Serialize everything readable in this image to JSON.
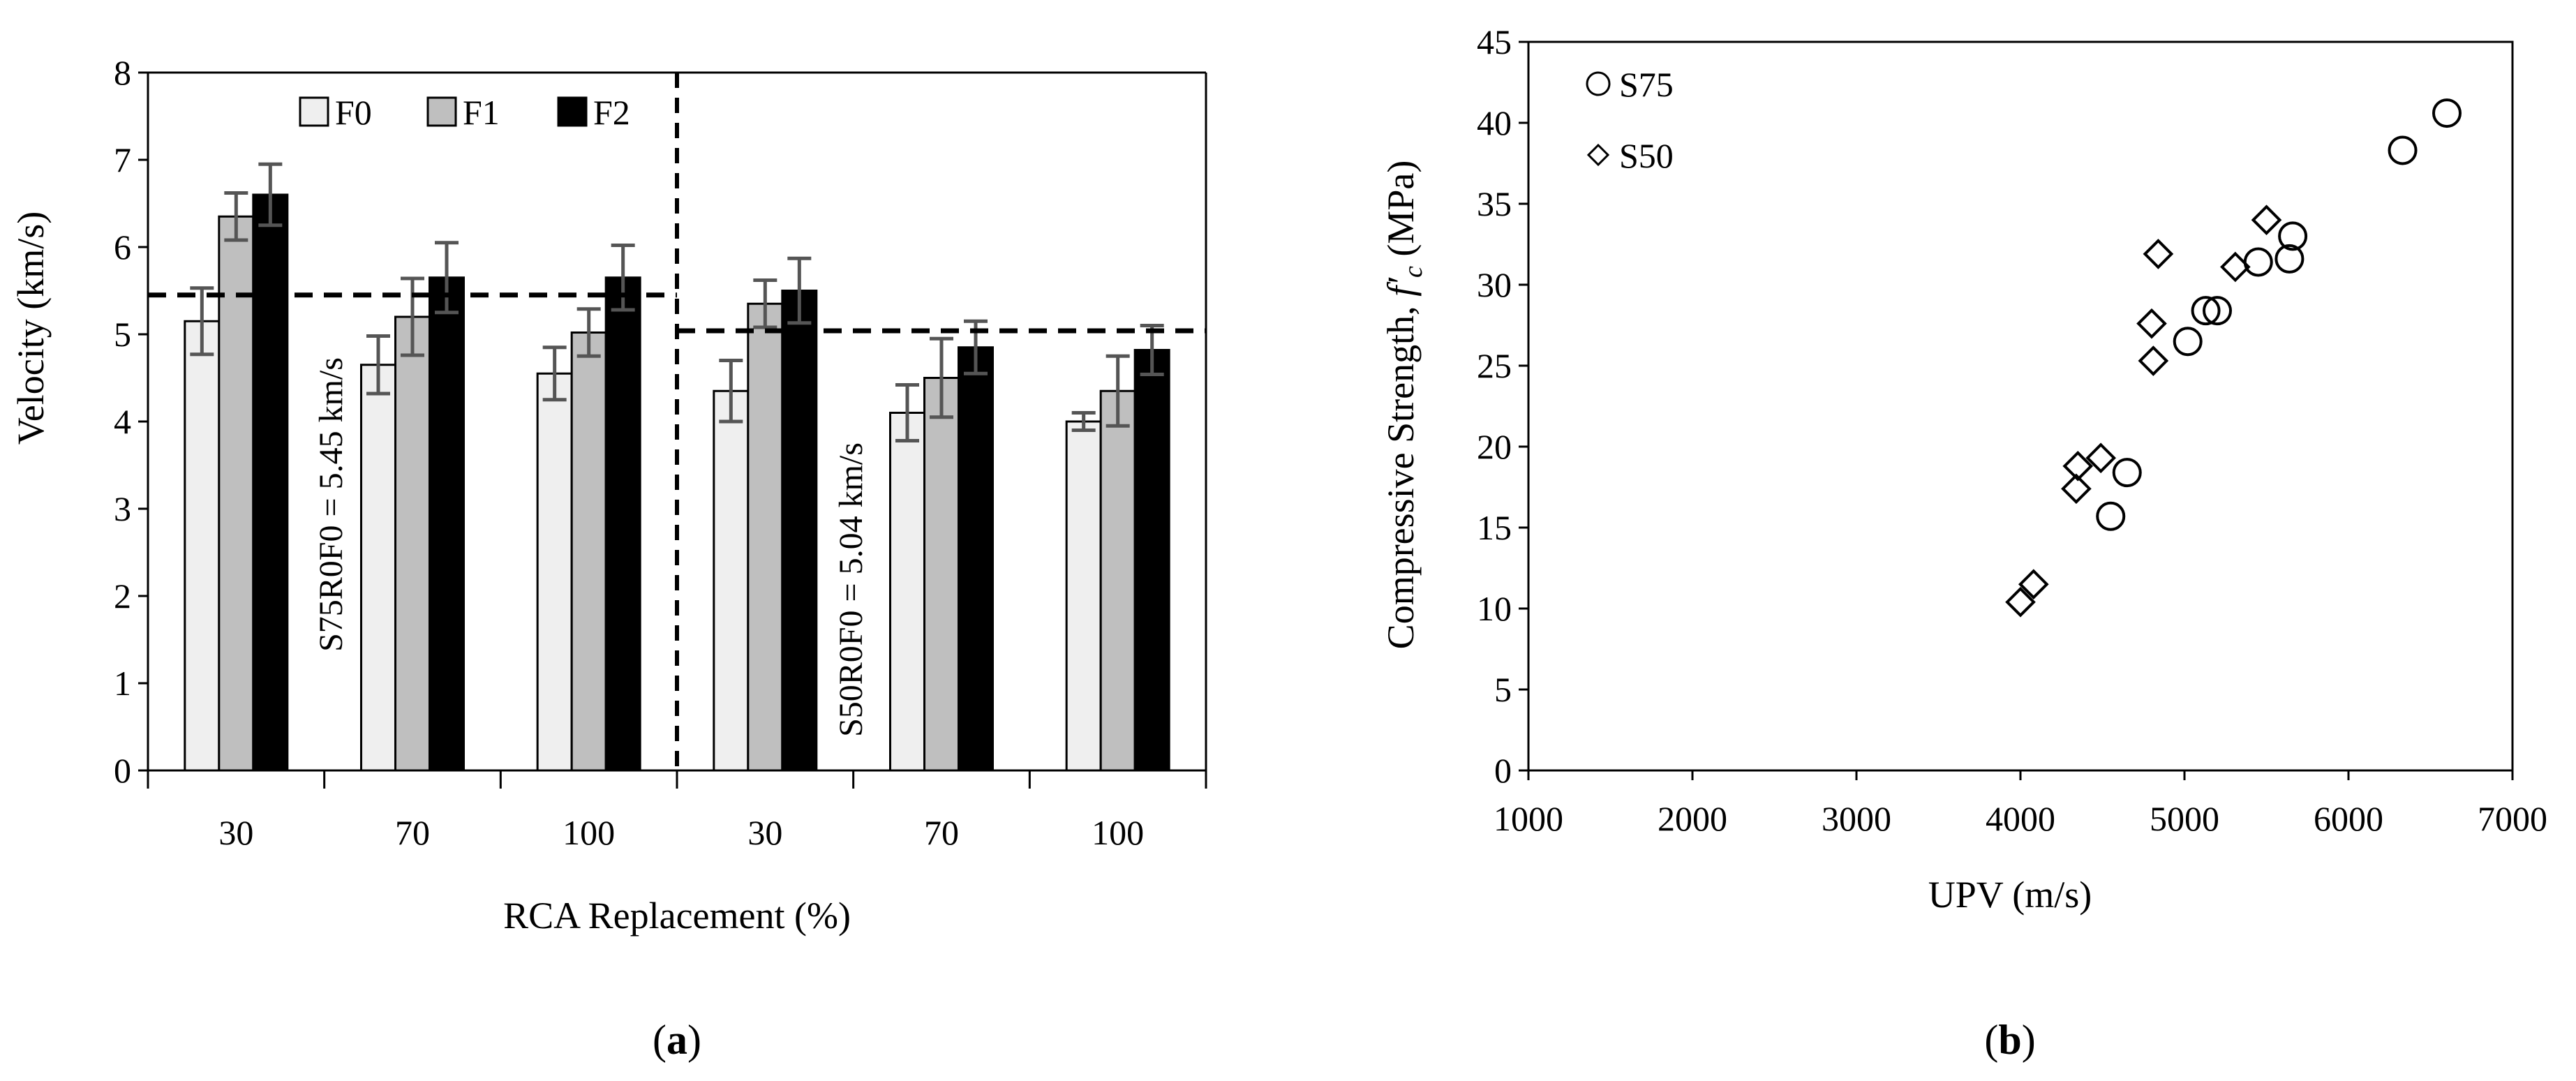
{
  "chart_data": [
    {
      "id": "a",
      "type": "bar",
      "caption_letter": "a",
      "xlabel": "RCA Replacement (%)",
      "ylabel": "Velocity (km/s)",
      "ylim": [
        0,
        8
      ],
      "yticks": [
        "0",
        "1",
        "2",
        "3",
        "4",
        "5",
        "6",
        "7",
        "8"
      ],
      "categories": [
        "30",
        "70",
        "100",
        "30",
        "70",
        "100"
      ],
      "series": [
        {
          "name": "F0",
          "color": "#efefef",
          "values": [
            5.15,
            4.65,
            4.55,
            4.35,
            4.1,
            4.0
          ],
          "errors": [
            0.38,
            0.33,
            0.3,
            0.35,
            0.32,
            0.1
          ]
        },
        {
          "name": "F1",
          "color": "#bfbfbf",
          "values": [
            6.35,
            5.2,
            5.02,
            5.35,
            4.5,
            4.35
          ],
          "errors": [
            0.27,
            0.44,
            0.27,
            0.27,
            0.45,
            0.4
          ]
        },
        {
          "name": "F2",
          "color": "#000000",
          "values": [
            6.6,
            5.65,
            5.65,
            5.5,
            4.85,
            4.82
          ],
          "errors": [
            0.35,
            0.4,
            0.37,
            0.37,
            0.3,
            0.28
          ]
        }
      ],
      "reference_lines": [
        {
          "label": "S75R0F0 = 5.45 km/s",
          "value": 5.45,
          "group": 0
        },
        {
          "label": "S50R0F0 = 5.04 km/s",
          "value": 5.04,
          "group": 1
        }
      ],
      "legend_position": "top"
    },
    {
      "id": "b",
      "type": "scatter",
      "caption_letter": "b",
      "xlabel": "UPV (m/s)",
      "ylabel_prefix": "Compressive Strength, ",
      "ylabel_symbol": "f′",
      "ylabel_subscript": "c",
      "ylabel_unit": " (MPa)",
      "xlim": [
        1000,
        7000
      ],
      "ylim": [
        0,
        45
      ],
      "xticks": [
        "1000",
        "2000",
        "3000",
        "4000",
        "5000",
        "6000",
        "7000"
      ],
      "yticks": [
        "0",
        "5",
        "10",
        "15",
        "20",
        "25",
        "30",
        "35",
        "40",
        "45"
      ],
      "legend_position": "top-left",
      "series": [
        {
          "name": "S75",
          "marker": "circle",
          "points": [
            [
              4550,
              15.7
            ],
            [
              4650,
              18.4
            ],
            [
              5020,
              26.5
            ],
            [
              5130,
              28.4
            ],
            [
              5200,
              28.4
            ],
            [
              5450,
              31.4
            ],
            [
              5640,
              31.6
            ],
            [
              5660,
              33.0
            ],
            [
              6330,
              38.3
            ],
            [
              6600,
              40.6
            ]
          ]
        },
        {
          "name": "S50",
          "marker": "diamond",
          "points": [
            [
              4000,
              10.4
            ],
            [
              4080,
              11.5
            ],
            [
              4340,
              17.4
            ],
            [
              4350,
              18.8
            ],
            [
              4490,
              19.3
            ],
            [
              4800,
              27.6
            ],
            [
              4810,
              25.3
            ],
            [
              4840,
              31.9
            ],
            [
              5310,
              31.1
            ],
            [
              5500,
              34.0
            ]
          ]
        }
      ]
    }
  ]
}
